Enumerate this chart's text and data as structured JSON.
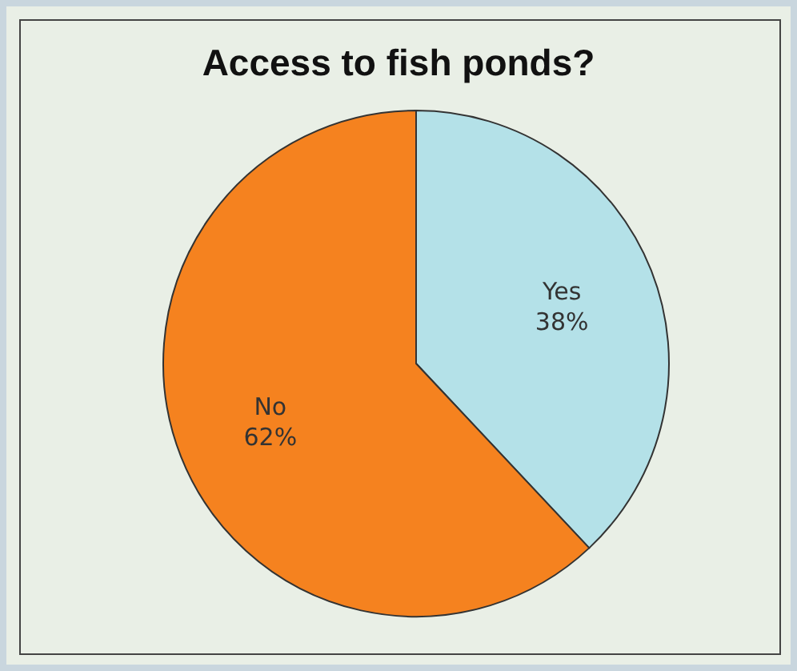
{
  "chart_data": {
    "type": "pie",
    "title": "Access to fish ponds?",
    "categories": [
      "Yes",
      "No"
    ],
    "values": [
      38,
      62
    ],
    "colors": [
      "#b4e1e8",
      "#f5821f"
    ],
    "value_labels": [
      "38%",
      "62%"
    ]
  }
}
